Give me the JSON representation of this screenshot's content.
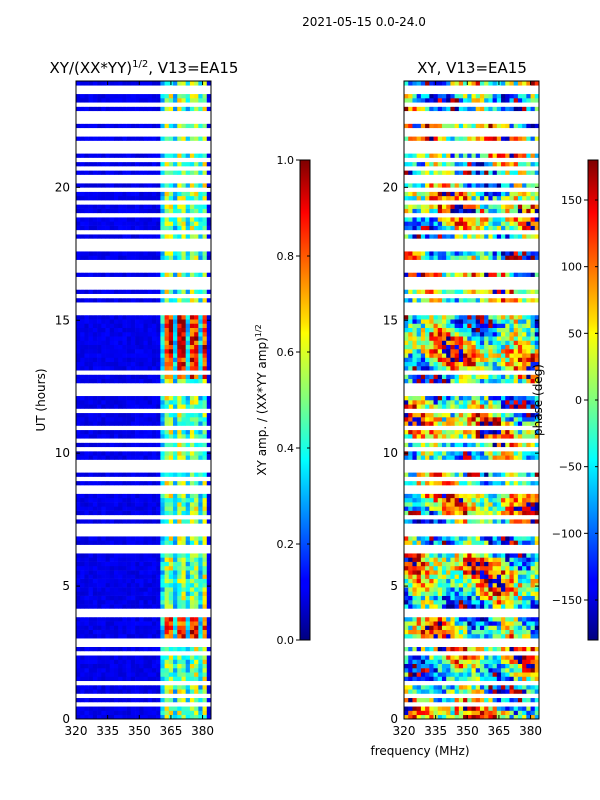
{
  "suptitle": "2021-05-15 0.0-24.0",
  "shared_xlabel": "frequency (MHz)",
  "chart_data": [
    {
      "type": "heatmap",
      "title_main": "XY/(XX*YY)",
      "title_exp": "1/2",
      "title_tail": ", V13=EA15",
      "xlabel": "",
      "ylabel": "UT (hours)",
      "x_range": [
        320,
        384
      ],
      "y_range": [
        0,
        24
      ],
      "x_ticks": [
        320,
        335,
        350,
        365,
        380
      ],
      "y_ticks": [
        0,
        5,
        10,
        15,
        20
      ],
      "colorbar": {
        "label_main": "XY amp. / (XX*YY amp)",
        "label_exp": "1/2",
        "range": [
          0.0,
          1.0
        ],
        "ticks": [
          "0.0",
          "0.2",
          "0.4",
          "0.6",
          "0.8",
          "1.0"
        ],
        "tick_values": [
          0.0,
          0.2,
          0.4,
          0.6,
          0.8,
          1.0
        ]
      },
      "bright_band_mhz": [
        361,
        381
      ],
      "hot_window_hours": [
        [
          3.0,
          4.2
        ],
        [
          12.8,
          15.2
        ]
      ]
    },
    {
      "type": "heatmap",
      "title": "XY, V13=EA15",
      "xlabel": "frequency (MHz)",
      "ylabel": "",
      "x_range": [
        320,
        384
      ],
      "y_range": [
        0,
        24
      ],
      "x_ticks": [
        320,
        335,
        350,
        365,
        380
      ],
      "y_ticks": [
        0,
        5,
        10,
        15,
        20
      ],
      "colorbar": {
        "label": "phase (deg)",
        "range": [
          -180,
          180
        ],
        "ticks": [
          "150",
          "100",
          "50",
          "0",
          "−50",
          "−100",
          "−150"
        ],
        "tick_values": [
          150,
          100,
          50,
          0,
          -50,
          -100,
          -150
        ]
      }
    }
  ],
  "flagged_hours": [
    0.5,
    0.85,
    1.3,
    1.4,
    2.5,
    2.8,
    2.95,
    3.9,
    4.05,
    6.3,
    6.35,
    6.45,
    6.55,
    6.9,
    7.1,
    7.3,
    7.55,
    7.85,
    8.15,
    8.5,
    8.75,
    9.1,
    9.4,
    9.55,
    9.7,
    10.1,
    10.5,
    10.9,
    11.2,
    11.6,
    12.2,
    12.35,
    12.45,
    12.55,
    12.65,
    13.0,
    15.25,
    15.4,
    15.65,
    15.9,
    16.2,
    16.4,
    16.6,
    16.9,
    17.1,
    17.2,
    17.45,
    17.65,
    17.85,
    18.05,
    18.3,
    18.4,
    18.55,
    18.95,
    19.35,
    19.5,
    19.95,
    20.2,
    20.45,
    20.7,
    21.05,
    21.3,
    21.5,
    21.7,
    21.95,
    22.2,
    22.45,
    22.6,
    22.85,
    23.1,
    23.35,
    23.55,
    23.75
  ]
}
